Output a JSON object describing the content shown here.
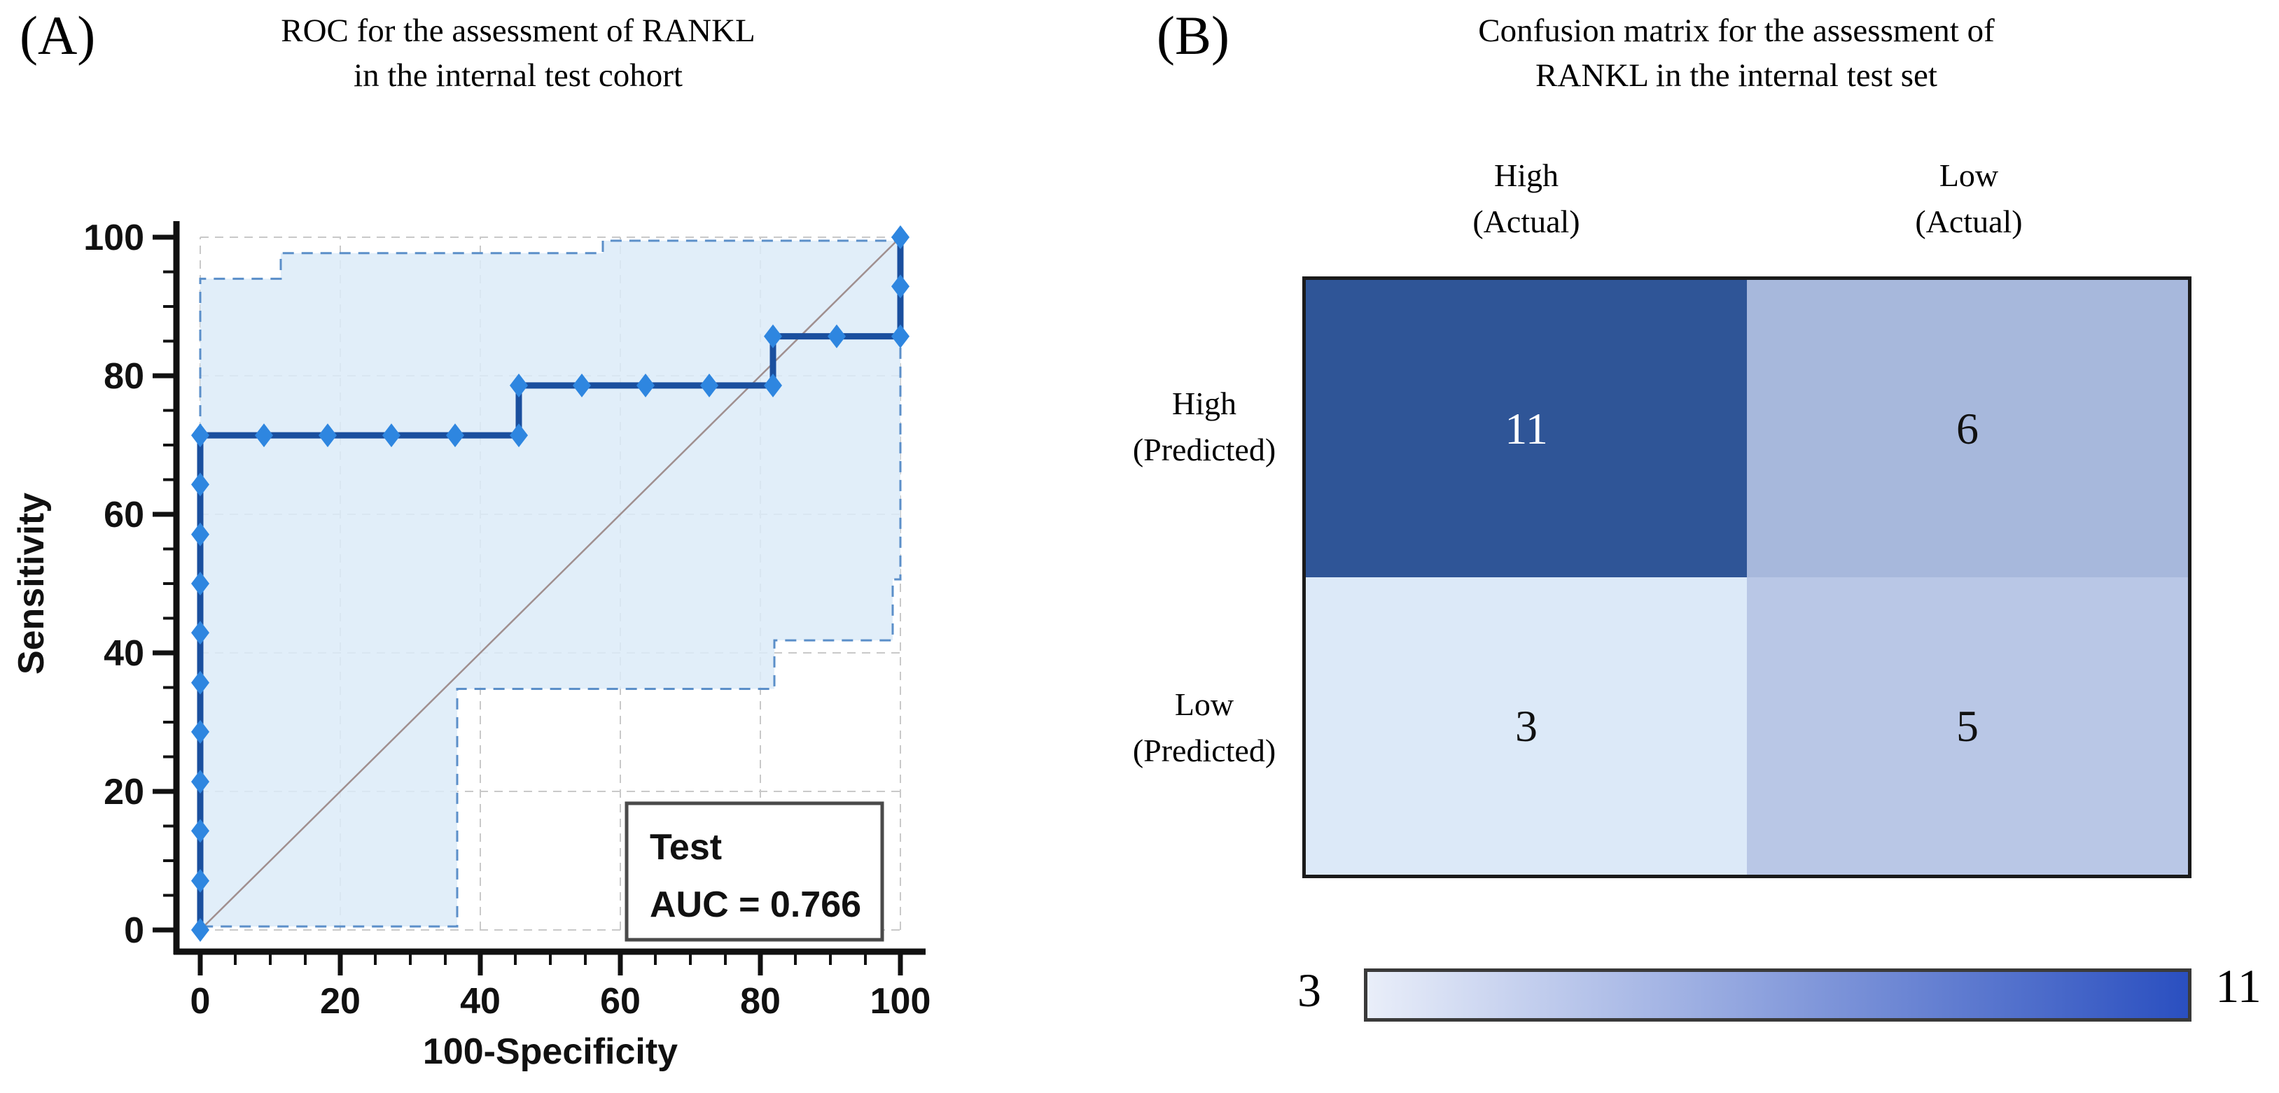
{
  "panel_a": {
    "label": "(A)",
    "title_line1": "ROC for the assessment of RANKL",
    "title_line2": "in the internal test cohort",
    "legend": {
      "line1": "Test",
      "line2": "AUC = 0.766"
    }
  },
  "panel_b": {
    "label": "(B)",
    "title_line1": "Confusion matrix for the assessment of",
    "title_line2": "RANKL in the internal test set",
    "col1_header": "High\n(Actual)",
    "col2_header": "Low\n(Actual)",
    "row1_label": "High\n(Predicted)",
    "row2_label": "Low\n(Predicted)"
  },
  "chart_data": [
    {
      "type": "line",
      "title": "ROC for the assessment of RANKL in the internal test cohort",
      "xlabel": "100-Specificity",
      "ylabel": "Sensitivity",
      "xlim": [
        0,
        100
      ],
      "ylim": [
        0,
        100
      ],
      "xticks": [
        0,
        20,
        40,
        60,
        80,
        100
      ],
      "yticks": [
        0,
        20,
        40,
        60,
        80,
        100
      ],
      "minor_tick_step": 5,
      "grid": true,
      "legend_position": "bottom-right",
      "annotation_auc": 0.766,
      "colors": {
        "roc_line": "#1a4f9e",
        "marker": "#2e86e0",
        "band_fill": "#dcebf8",
        "band_border": "#5b8fc9",
        "diagonal": "#a08f8f",
        "gridline": "#c9c9c9",
        "axis": "#111111"
      },
      "series": [
        {
          "name": "ROC curve (Test)",
          "marker": "diamond",
          "points": [
            [
              0,
              0
            ],
            [
              0,
              7.1
            ],
            [
              0,
              14.3
            ],
            [
              0,
              21.4
            ],
            [
              0,
              28.6
            ],
            [
              0,
              35.7
            ],
            [
              0,
              42.9
            ],
            [
              0,
              50
            ],
            [
              0,
              57.1
            ],
            [
              0,
              64.3
            ],
            [
              0,
              71.4
            ],
            [
              9.1,
              71.4
            ],
            [
              18.2,
              71.4
            ],
            [
              27.3,
              71.4
            ],
            [
              36.4,
              71.4
            ],
            [
              45.5,
              71.4
            ],
            [
              45.5,
              78.6
            ],
            [
              54.5,
              78.6
            ],
            [
              63.6,
              78.6
            ],
            [
              72.7,
              78.6
            ],
            [
              81.8,
              78.6
            ],
            [
              81.8,
              85.7
            ],
            [
              90.9,
              85.7
            ],
            [
              100,
              85.7
            ],
            [
              100,
              92.9
            ],
            [
              100,
              100
            ]
          ]
        },
        {
          "name": "95% confidence band",
          "type": "area",
          "points": [
            [
              0,
              0.5
            ],
            [
              0,
              94
            ],
            [
              11.5,
              94
            ],
            [
              11.5,
              97.7
            ],
            [
              57.5,
              97.7
            ],
            [
              57.5,
              99.5
            ],
            [
              100,
              99.5
            ],
            [
              100,
              50.6
            ],
            [
              98.9,
              50.6
            ],
            [
              98.9,
              41.8
            ],
            [
              82,
              41.8
            ],
            [
              82,
              34.8
            ],
            [
              36.7,
              34.8
            ],
            [
              36.7,
              0.5
            ]
          ]
        },
        {
          "name": "reference diagonal",
          "points": [
            [
              0,
              0
            ],
            [
              100,
              100
            ]
          ]
        }
      ]
    },
    {
      "type": "heatmap",
      "title": "Confusion matrix for the assessment of RANKL in the internal test set",
      "rows": [
        "High (Predicted)",
        "Low (Predicted)"
      ],
      "columns": [
        "High (Actual)",
        "Low (Actual)"
      ],
      "values": [
        [
          11,
          6
        ],
        [
          3,
          5
        ]
      ],
      "cell_colors": [
        [
          "#2f5597",
          "#a7b8dc"
        ],
        [
          "#dce9f8",
          "#b9c7e6"
        ]
      ],
      "colorbar": {
        "min": 3,
        "max": 11,
        "from": "#e9eef9",
        "to": "#2a4fc0"
      }
    }
  ]
}
